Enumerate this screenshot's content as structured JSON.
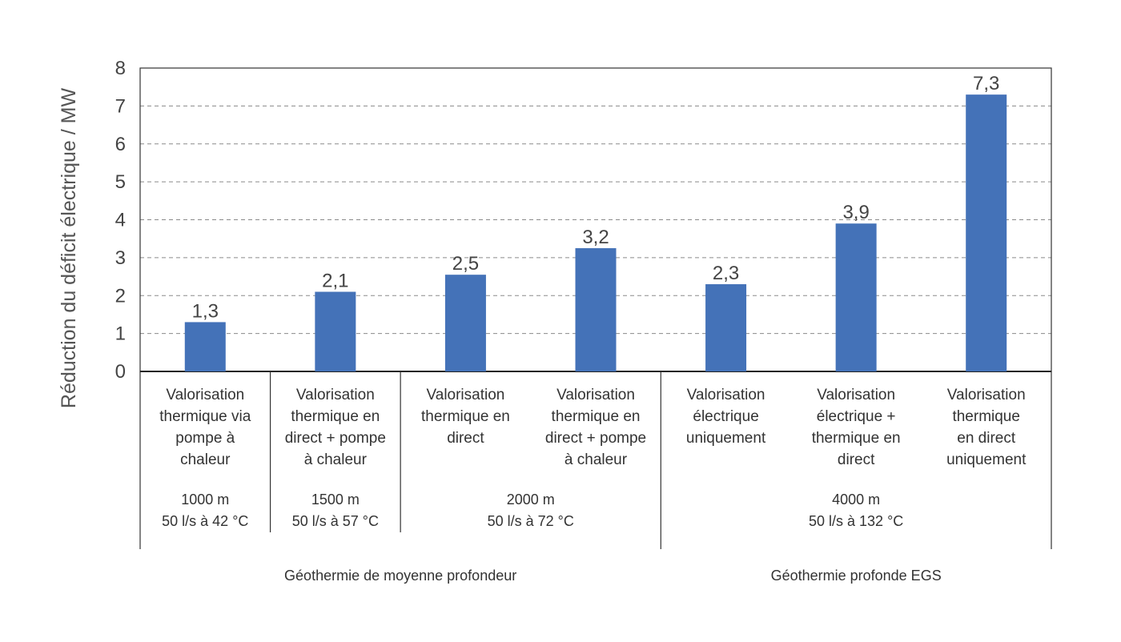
{
  "chart_data": {
    "type": "bar",
    "ylabel": "Réduction du déficit électrique / MW",
    "ylim": [
      0,
      8
    ],
    "yticks": [
      "0",
      "1",
      "2",
      "3",
      "4",
      "5",
      "6",
      "7",
      "8"
    ],
    "grid": "horizontal dashed",
    "bar_color": "#4472b8",
    "categories": [
      [
        "Valorisation",
        "thermique via",
        "pompe à",
        "chaleur"
      ],
      [
        "Valorisation",
        "thermique en",
        "direct + pompe",
        "à chaleur"
      ],
      [
        "Valorisation",
        "thermique en",
        "direct"
      ],
      [
        "Valorisation",
        "thermique en",
        "direct + pompe",
        "à chaleur"
      ],
      [
        "Valorisation",
        "électrique",
        "uniquement"
      ],
      [
        "Valorisation",
        "électrique +",
        "thermique en",
        "direct"
      ],
      [
        "Valorisation",
        "thermique",
        "en direct",
        "uniquement"
      ]
    ],
    "values": [
      1.3,
      2.1,
      2.55,
      3.25,
      2.3,
      3.9,
      7.3
    ],
    "value_labels": [
      "1,3",
      "2,1",
      "2,5",
      "3,2",
      "2,3",
      "3,9",
      "7,3"
    ],
    "subgroups": [
      {
        "lines": [
          "1000 m",
          "50 l/s à 42 °C"
        ],
        "bars": [
          0
        ]
      },
      {
        "lines": [
          "1500 m",
          "50 l/s à 57 °C"
        ],
        "bars": [
          1
        ]
      },
      {
        "lines": [
          "2000 m",
          "50 l/s à 72 °C"
        ],
        "bars": [
          2,
          3
        ]
      },
      {
        "lines": [
          "4000 m",
          "50 l/s à 132 °C"
        ],
        "bars": [
          4,
          5,
          6
        ]
      }
    ],
    "groups": [
      {
        "label": "Géothermie de moyenne profondeur",
        "bars": [
          0,
          1,
          2,
          3
        ]
      },
      {
        "label": "Géothermie profonde EGS",
        "bars": [
          4,
          5,
          6
        ]
      }
    ]
  }
}
